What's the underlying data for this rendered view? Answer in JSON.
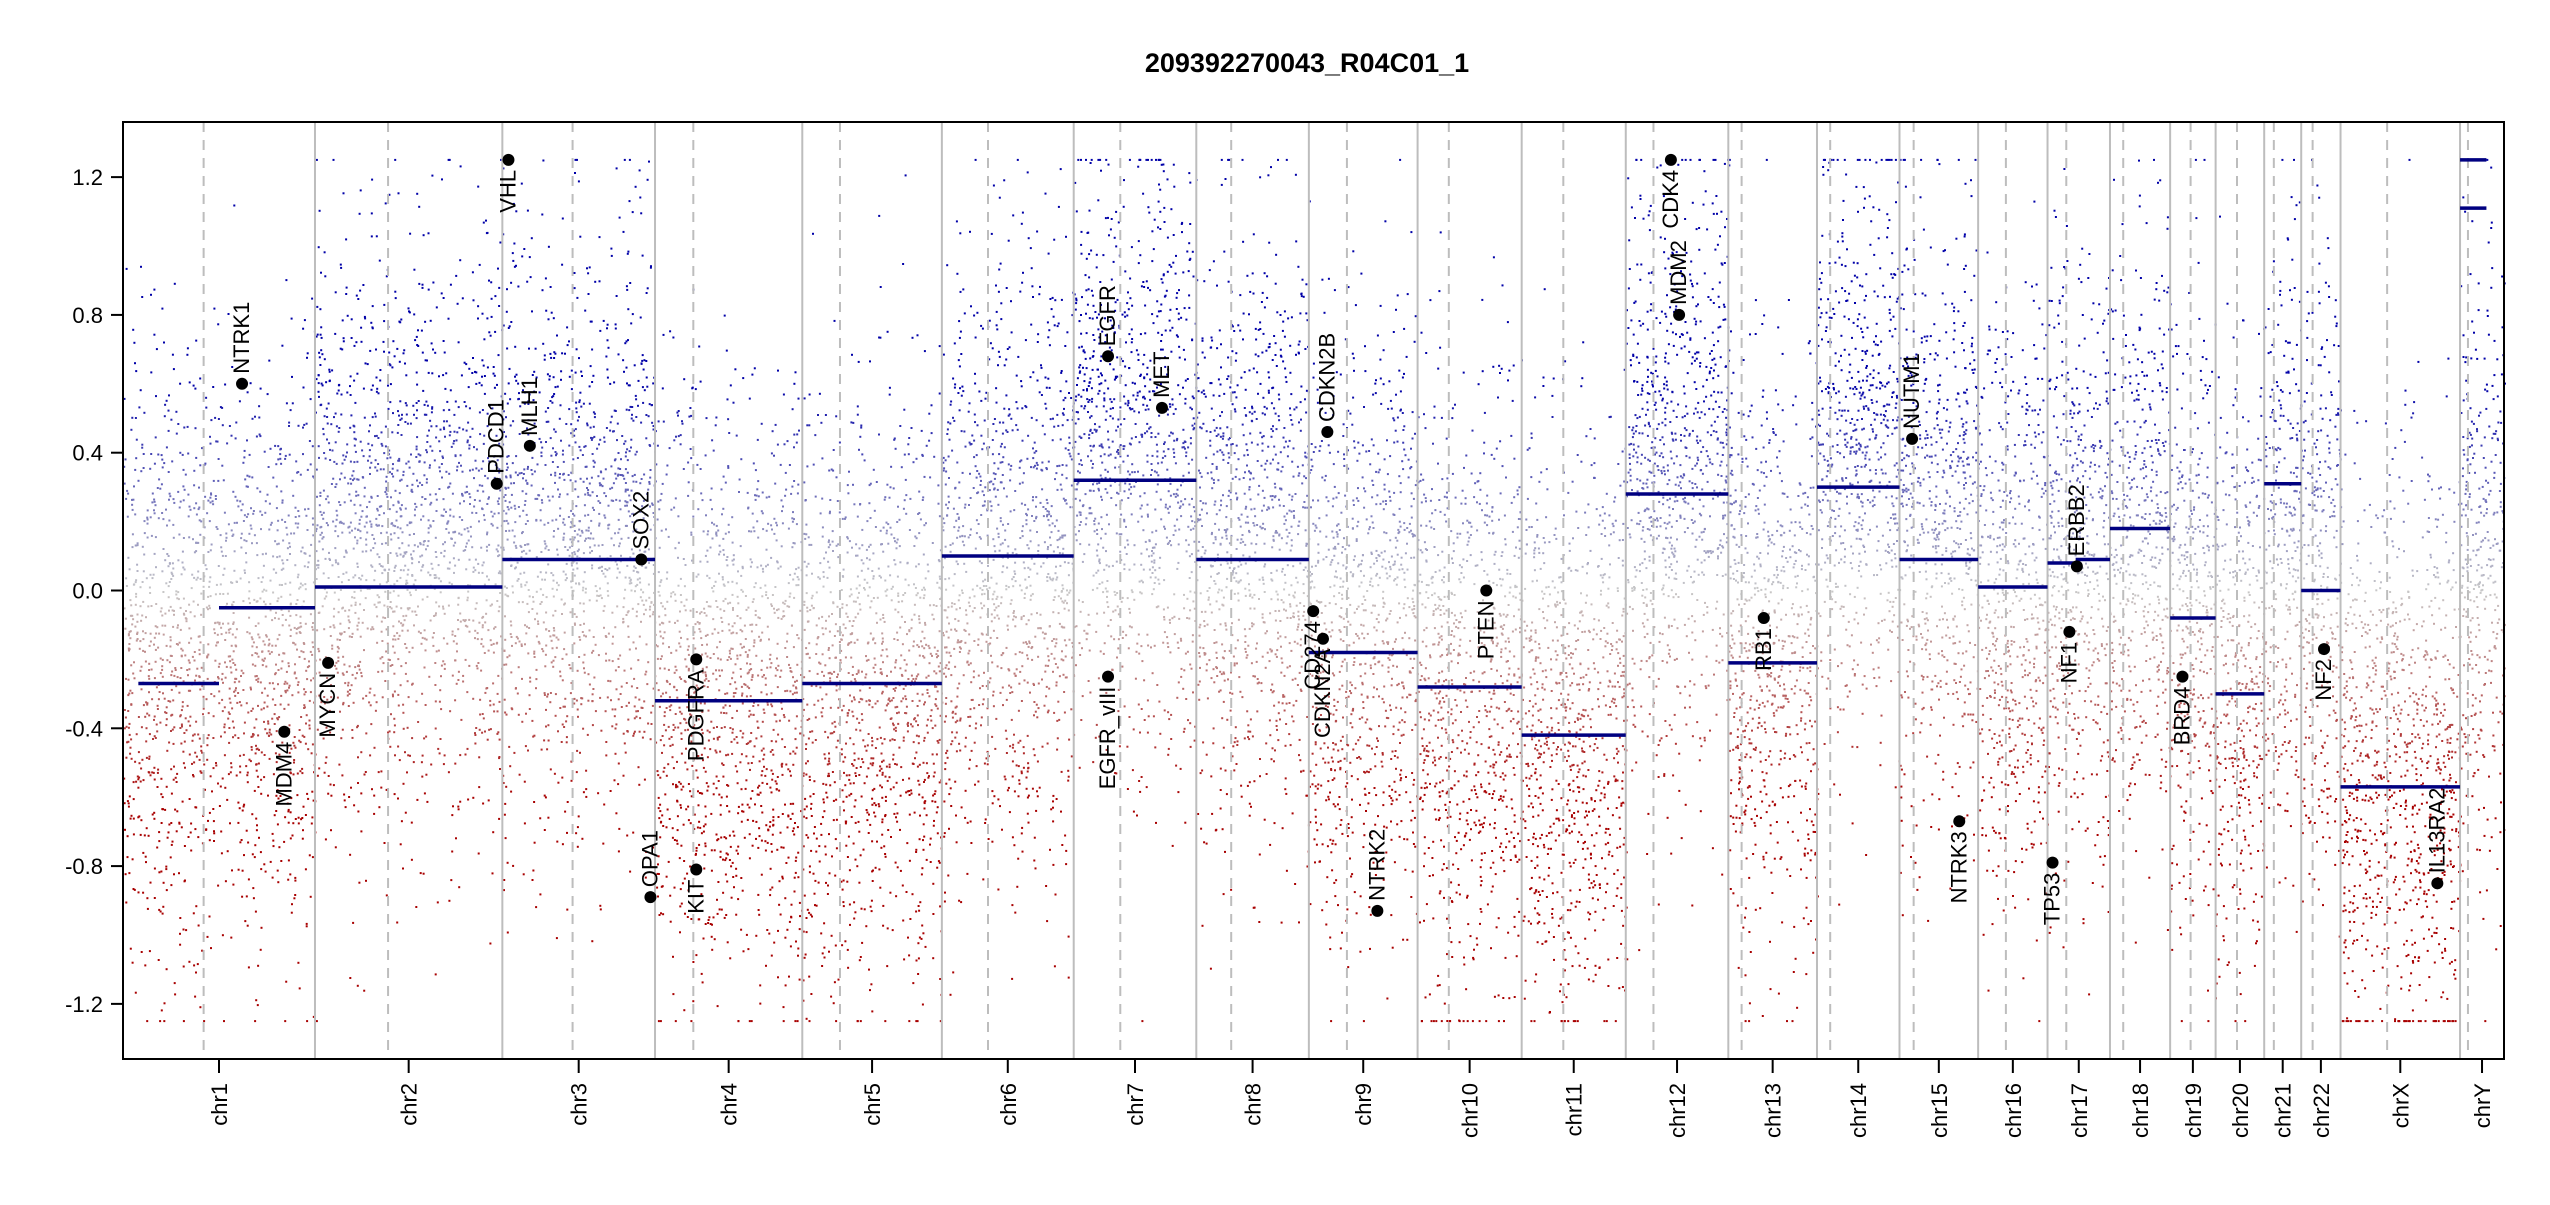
{
  "chart_data": {
    "type": "scatter",
    "title": "209392270043_R04C01_1",
    "xlabel": "",
    "ylabel": "",
    "ylim": [
      -1.36,
      1.36
    ],
    "yticks": [
      1.2,
      0.8,
      0.4,
      0.0,
      -0.4,
      -0.8,
      -1.2
    ],
    "ytick_labels": [
      "1.2",
      "0.8",
      "0.4",
      "0.0",
      "-0.4",
      "-0.8",
      "-1.2"
    ],
    "grid": false,
    "colors": {
      "gain": "#0000a8",
      "neutral": "#c8c8c8",
      "loss": "#a80000",
      "segment": "#000080",
      "boundary": "#bdbdbd",
      "centromere": "#bdbdbd"
    },
    "chromosomes": [
      {
        "name": "chr1",
        "length": 249,
        "centromere": 0.42,
        "segments": [
          {
            "start": 0.08,
            "end": 0.5,
            "value": -0.27
          },
          {
            "start": 0.5,
            "end": 1.0,
            "value": -0.05
          }
        ]
      },
      {
        "name": "chr2",
        "length": 243,
        "centromere": 0.39,
        "segments": [
          {
            "start": 0.0,
            "end": 1.0,
            "value": 0.01
          }
        ]
      },
      {
        "name": "chr3",
        "length": 198,
        "centromere": 0.46,
        "segments": [
          {
            "start": 0.0,
            "end": 1.0,
            "value": 0.09
          }
        ]
      },
      {
        "name": "chr4",
        "length": 191,
        "centromere": 0.26,
        "segments": [
          {
            "start": 0.0,
            "end": 1.0,
            "value": -0.32
          }
        ]
      },
      {
        "name": "chr5",
        "length": 181,
        "centromere": 0.27,
        "segments": [
          {
            "start": 0.0,
            "end": 1.0,
            "value": -0.27
          }
        ]
      },
      {
        "name": "chr6",
        "length": 171,
        "centromere": 0.35,
        "segments": [
          {
            "start": 0.0,
            "end": 1.0,
            "value": 0.1
          }
        ]
      },
      {
        "name": "chr7",
        "length": 159,
        "centromere": 0.38,
        "segments": [
          {
            "start": 0.0,
            "end": 1.0,
            "value": 0.32
          }
        ]
      },
      {
        "name": "chr8",
        "length": 146,
        "centromere": 0.31,
        "segments": [
          {
            "start": 0.0,
            "end": 1.0,
            "value": 0.09
          }
        ]
      },
      {
        "name": "chr9",
        "length": 141,
        "centromere": 0.35,
        "segments": [
          {
            "start": 0.0,
            "end": 1.0,
            "value": -0.18
          }
        ]
      },
      {
        "name": "chr10",
        "length": 135,
        "centromere": 0.3,
        "segments": [
          {
            "start": 0.0,
            "end": 1.0,
            "value": -0.28
          }
        ]
      },
      {
        "name": "chr11",
        "length": 135,
        "centromere": 0.4,
        "segments": [
          {
            "start": 0.0,
            "end": 1.0,
            "value": -0.42
          }
        ]
      },
      {
        "name": "chr12",
        "length": 133,
        "centromere": 0.27,
        "segments": [
          {
            "start": 0.0,
            "end": 1.0,
            "value": 0.28
          }
        ]
      },
      {
        "name": "chr13",
        "length": 115,
        "centromere": 0.15,
        "segments": [
          {
            "start": 0.0,
            "end": 1.0,
            "value": -0.21
          }
        ]
      },
      {
        "name": "chr14",
        "length": 107,
        "centromere": 0.16,
        "segments": [
          {
            "start": 0.0,
            "end": 1.0,
            "value": 0.3
          }
        ]
      },
      {
        "name": "chr15",
        "length": 102,
        "centromere": 0.18,
        "segments": [
          {
            "start": 0.0,
            "end": 1.0,
            "value": 0.09
          }
        ]
      },
      {
        "name": "chr16",
        "length": 90,
        "centromere": 0.4,
        "segments": [
          {
            "start": 0.0,
            "end": 1.0,
            "value": 0.01
          }
        ]
      },
      {
        "name": "chr17",
        "length": 81,
        "centromere": 0.3,
        "segments": [
          {
            "start": 0.0,
            "end": 0.45,
            "value": 0.08
          },
          {
            "start": 0.45,
            "end": 1.0,
            "value": 0.09
          }
        ]
      },
      {
        "name": "chr18",
        "length": 78,
        "centromere": 0.22,
        "segments": [
          {
            "start": 0.0,
            "end": 1.0,
            "value": 0.18
          }
        ]
      },
      {
        "name": "chr19",
        "length": 59,
        "centromere": 0.45,
        "segments": [
          {
            "start": 0.0,
            "end": 1.0,
            "value": -0.08
          }
        ]
      },
      {
        "name": "chr20",
        "length": 63,
        "centromere": 0.44,
        "segments": [
          {
            "start": 0.0,
            "end": 1.0,
            "value": -0.3
          }
        ]
      },
      {
        "name": "chr21",
        "length": 48,
        "centromere": 0.26,
        "segments": [
          {
            "start": 0.0,
            "end": 1.0,
            "value": 0.31
          }
        ]
      },
      {
        "name": "chr22",
        "length": 51,
        "centromere": 0.29,
        "segments": [
          {
            "start": 0.0,
            "end": 1.0,
            "value": 0.0
          }
        ]
      },
      {
        "name": "chrX",
        "length": 155,
        "centromere": 0.39,
        "segments": [
          {
            "start": 0.0,
            "end": 1.0,
            "value": -0.57
          }
        ]
      },
      {
        "name": "chrY",
        "length": 57,
        "centromere": 0.18,
        "segments": [
          {
            "start": 0.0,
            "end": 0.6,
            "value": 1.25
          },
          {
            "start": 0.0,
            "end": 0.6,
            "value": 1.11
          }
        ]
      }
    ],
    "chromosome_dot_bias": {
      "chr1": -0.2,
      "chr2": 0.15,
      "chr3": 0.15,
      "chr4": -0.3,
      "chr5": -0.3,
      "chr6": 0.05,
      "chr7": 0.4,
      "chr8": 0.15,
      "chr9": -0.1,
      "chr10": -0.3,
      "chr11": -0.4,
      "chr12": 0.35,
      "chr13": -0.2,
      "chr14": 0.4,
      "chr15": 0.2,
      "chr16": -0.05,
      "chr17": 0.05,
      "chr18": 0.15,
      "chr19": -0.1,
      "chr20": -0.25,
      "chr21": 0.15,
      "chr22": 0.05,
      "chrX": -0.5,
      "chrY": 0.1
    },
    "genes": [
      {
        "name": "NTRK1",
        "chr": "chr1",
        "pos": 0.62,
        "value": 0.6,
        "label_side": "above"
      },
      {
        "name": "MDM4",
        "chr": "chr1",
        "pos": 0.84,
        "value": -0.41,
        "label_side": "below"
      },
      {
        "name": "MYCN",
        "chr": "chr2",
        "pos": 0.07,
        "value": -0.21,
        "label_side": "below"
      },
      {
        "name": "PDCD1",
        "chr": "chr2",
        "pos": 0.97,
        "value": 0.31,
        "label_side": "above"
      },
      {
        "name": "VHL",
        "chr": "chr3",
        "pos": 0.04,
        "value": 1.25,
        "label_side": "below"
      },
      {
        "name": "MLH1",
        "chr": "chr3",
        "pos": 0.18,
        "value": 0.42,
        "label_side": "above"
      },
      {
        "name": "SOX2",
        "chr": "chr3",
        "pos": 0.91,
        "value": 0.09,
        "label_side": "above"
      },
      {
        "name": "OPA1",
        "chr": "chr3",
        "pos": 0.97,
        "value": -0.89,
        "label_side": "above"
      },
      {
        "name": "PDGFRA",
        "chr": "chr4",
        "pos": 0.28,
        "value": -0.2,
        "label_side": "below"
      },
      {
        "name": "KIT",
        "chr": "chr4",
        "pos": 0.28,
        "value": -0.81,
        "label_side": "below"
      },
      {
        "name": "EGFR",
        "chr": "chr7",
        "pos": 0.28,
        "value": 0.68,
        "label_side": "above"
      },
      {
        "name": "EGFR_vIII",
        "chr": "chr7",
        "pos": 0.28,
        "value": -0.25,
        "label_side": "below"
      },
      {
        "name": "MET",
        "chr": "chr7",
        "pos": 0.72,
        "value": 0.53,
        "label_side": "above"
      },
      {
        "name": "CD274",
        "chr": "chr9",
        "pos": 0.04,
        "value": -0.06,
        "label_side": "below"
      },
      {
        "name": "CDKN2A",
        "chr": "chr9",
        "pos": 0.13,
        "value": -0.14,
        "label_side": "below"
      },
      {
        "name": "CDKN2B",
        "chr": "chr9",
        "pos": 0.17,
        "value": 0.46,
        "label_side": "above"
      },
      {
        "name": "NTRK2",
        "chr": "chr9",
        "pos": 0.63,
        "value": -0.93,
        "label_side": "above"
      },
      {
        "name": "PTEN",
        "chr": "chr10",
        "pos": 0.66,
        "value": 0.0,
        "label_side": "below"
      },
      {
        "name": "MDM2",
        "chr": "chr12",
        "pos": 0.52,
        "value": 0.8,
        "label_side": "above"
      },
      {
        "name": "CDK4",
        "chr": "chr12",
        "pos": 0.44,
        "value": 1.25,
        "label_side": "below"
      },
      {
        "name": "RB1",
        "chr": "chr13",
        "pos": 0.4,
        "value": -0.08,
        "label_side": "below"
      },
      {
        "name": "NUTM1",
        "chr": "chr15",
        "pos": 0.16,
        "value": 0.44,
        "label_side": "above"
      },
      {
        "name": "NTRK3",
        "chr": "chr15",
        "pos": 0.76,
        "value": -0.67,
        "label_side": "below"
      },
      {
        "name": "TP53",
        "chr": "chr17",
        "pos": 0.08,
        "value": -0.79,
        "label_side": "below"
      },
      {
        "name": "NF1",
        "chr": "chr17",
        "pos": 0.35,
        "value": -0.12,
        "label_side": "below"
      },
      {
        "name": "ERBB2",
        "chr": "chr17",
        "pos": 0.47,
        "value": 0.07,
        "label_side": "above"
      },
      {
        "name": "BRD4",
        "chr": "chr19",
        "pos": 0.27,
        "value": -0.25,
        "label_side": "below"
      },
      {
        "name": "NF2",
        "chr": "chr22",
        "pos": 0.58,
        "value": -0.17,
        "label_side": "below"
      },
      {
        "name": "IL13RA2",
        "chr": "chrX",
        "pos": 0.81,
        "value": -0.85,
        "label_side": "above"
      }
    ]
  }
}
